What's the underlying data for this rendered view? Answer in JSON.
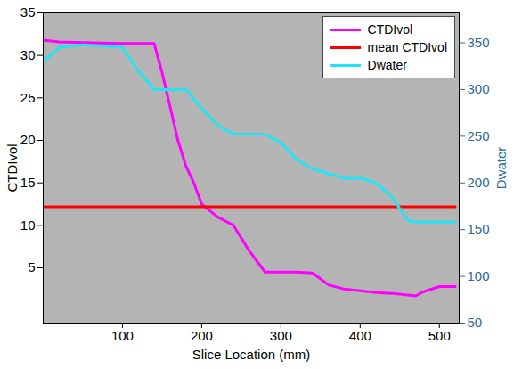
{
  "chart_data": {
    "type": "line",
    "xlabel": "Slice Location (mm)",
    "ylabel": "CTDIvol",
    "y2label": "Dwater",
    "x": [
      0,
      20,
      50,
      100,
      120,
      140,
      150,
      160,
      170,
      180,
      190,
      200,
      220,
      240,
      260,
      280,
      300,
      320,
      340,
      360,
      380,
      400,
      420,
      440,
      460,
      470,
      480,
      500,
      520
    ],
    "series": [
      {
        "name": "CTDIvol",
        "color": "#ff00ff",
        "values": [
          31.8,
          31.6,
          31.5,
          31.4,
          31.4,
          31.4,
          28,
          24,
          20,
          17,
          15,
          12.5,
          11,
          10,
          7,
          4.5,
          4.5,
          4.5,
          4.4,
          3,
          2.5,
          2.3,
          2.1,
          2,
          1.8,
          1.7,
          2.2,
          2.8,
          2.8
        ]
      },
      {
        "name": "mean CTDIvol",
        "color": "#ff0000",
        "values": [
          12.2,
          12.2,
          12.2,
          12.2,
          12.2,
          12.2,
          12.2,
          12.2,
          12.2,
          12.2,
          12.2,
          12.2,
          12.2,
          12.2,
          12.2,
          12.2,
          12.2,
          12.2,
          12.2,
          12.2,
          12.2,
          12.2,
          12.2,
          12.2,
          12.2,
          12.2,
          12.2,
          12.2,
          12.2
        ]
      },
      {
        "name": "Dwater",
        "color": "#22e4f2",
        "axis": "y2",
        "values": [
          330,
          345,
          348,
          345,
          320,
          300,
          300,
          300,
          300,
          300,
          290,
          280,
          262,
          252,
          252,
          252,
          243,
          225,
          215,
          210,
          205,
          205,
          200,
          185,
          160,
          158,
          158,
          158,
          158
        ]
      }
    ],
    "xlim": [
      0,
      525
    ],
    "xticks": [
      100,
      200,
      300,
      400,
      500
    ],
    "ylim": [
      -1.5,
      35
    ],
    "yticks": [
      5,
      10,
      15,
      20,
      25,
      30,
      35
    ],
    "y2lim": [
      50,
      382
    ],
    "y2ticks": [
      50,
      100,
      150,
      200,
      250,
      300,
      350
    ],
    "legend": "upper right"
  }
}
